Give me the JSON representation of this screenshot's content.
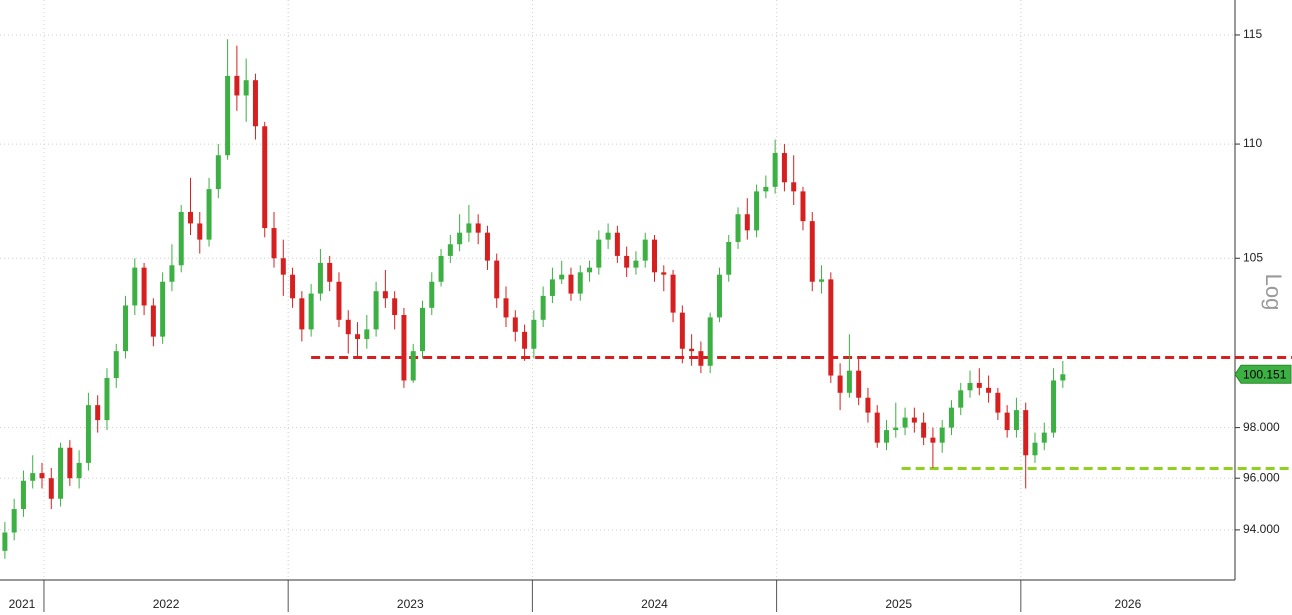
{
  "chart_data": {
    "type": "candlestick",
    "axis_label": "Log",
    "log_scale": true,
    "grid": true,
    "up_color": "#3cb043",
    "down_color": "#d62020",
    "ylim": [
      92.1,
      116.65
    ],
    "yticks": [
      {
        "value": 94,
        "label": "94.000"
      },
      {
        "value": 96,
        "label": "96.000"
      },
      {
        "value": 98,
        "label": "98.000"
      },
      105,
      110,
      115
    ],
    "xlim": [
      2021.82,
      2026.877
    ],
    "xticks": [
      {
        "value": 2021,
        "label": "2021"
      },
      {
        "value": 2022,
        "label": "2022"
      },
      {
        "value": 2023,
        "label": "2023"
      },
      {
        "value": 2024,
        "label": "2024"
      },
      {
        "value": 2025,
        "label": "2025"
      },
      {
        "value": 2026,
        "label": "2026"
      }
    ],
    "levels": [
      {
        "value": 100.84,
        "from": 2023.094,
        "color": "#d62020"
      },
      {
        "value": 96.38,
        "from": 2025.512,
        "color": "#8fd11e"
      }
    ],
    "series": [
      {
        "x": [
          2021.84,
          2021.878,
          2021.916,
          2021.954,
          2021.992,
          2022.03,
          2022.068,
          2022.106,
          2022.144,
          2022.182,
          2022.22,
          2022.258,
          2022.296,
          2022.334,
          2022.372,
          2022.41,
          2022.448,
          2022.486,
          2022.524,
          2022.562,
          2022.6,
          2022.638,
          2022.676,
          2022.714,
          2022.752,
          2022.79,
          2022.828,
          2022.866,
          2022.904,
          2022.942,
          2022.98,
          2023.018,
          2023.056,
          2023.094,
          2023.132,
          2023.17,
          2023.208,
          2023.246,
          2023.284,
          2023.322,
          2023.36,
          2023.398,
          2023.436,
          2023.474,
          2023.512,
          2023.55,
          2023.588,
          2023.626,
          2023.664,
          2023.702,
          2023.74,
          2023.778,
          2023.816,
          2023.854,
          2023.892,
          2023.93,
          2023.968,
          2024.006,
          2024.044,
          2024.082,
          2024.12,
          2024.158,
          2024.196,
          2024.234,
          2024.272,
          2024.31,
          2024.348,
          2024.386,
          2024.424,
          2024.462,
          2024.5,
          2024.538,
          2024.576,
          2024.614,
          2024.652,
          2024.69,
          2024.728,
          2024.766,
          2024.804,
          2024.842,
          2024.88,
          2024.918,
          2024.956,
          2024.994,
          2025.032,
          2025.07,
          2025.108,
          2025.146,
          2025.184,
          2025.222,
          2025.26,
          2025.298,
          2025.336,
          2025.374,
          2025.412,
          2025.45,
          2025.488,
          2025.526,
          2025.564,
          2025.602,
          2025.64,
          2025.678,
          2025.716,
          2025.754,
          2025.792,
          2025.83,
          2025.868,
          2025.906,
          2025.944,
          2025.982,
          2026.02,
          2026.058,
          2026.096,
          2026.134,
          2026.172
        ],
        "ohlc": [
          [
            93.2,
            94.3,
            92.9,
            93.9
          ],
          [
            93.9,
            95.2,
            93.6,
            94.8
          ],
          [
            94.8,
            96.3,
            94.5,
            95.9
          ],
          [
            95.9,
            96.9,
            95.6,
            96.2
          ],
          [
            96.2,
            96.6,
            95.6,
            96.0
          ],
          [
            96.0,
            96.4,
            94.8,
            95.2
          ],
          [
            95.2,
            97.4,
            94.9,
            97.2
          ],
          [
            97.2,
            97.5,
            95.7,
            96.0
          ],
          [
            96.0,
            97.1,
            95.6,
            96.6
          ],
          [
            96.6,
            99.4,
            96.3,
            98.9
          ],
          [
            98.9,
            99.3,
            97.8,
            98.3
          ],
          [
            98.3,
            100.4,
            97.9,
            100.0
          ],
          [
            100.0,
            101.4,
            99.6,
            101.1
          ],
          [
            101.1,
            103.4,
            100.8,
            103.0
          ],
          [
            103.0,
            105.0,
            102.6,
            104.6
          ],
          [
            104.6,
            104.8,
            102.6,
            103.0
          ],
          [
            103.0,
            103.3,
            101.3,
            101.7
          ],
          [
            101.7,
            104.4,
            101.4,
            104.0
          ],
          [
            104.0,
            105.6,
            103.6,
            104.7
          ],
          [
            104.7,
            107.3,
            104.4,
            107.0
          ],
          [
            107.0,
            108.5,
            106.0,
            106.5
          ],
          [
            106.5,
            107.0,
            105.2,
            105.8
          ],
          [
            105.8,
            108.5,
            105.5,
            108.0
          ],
          [
            108.0,
            110.0,
            107.6,
            109.5
          ],
          [
            109.5,
            114.8,
            109.3,
            113.1
          ],
          [
            113.1,
            114.5,
            111.5,
            112.2
          ],
          [
            112.2,
            113.9,
            111.0,
            112.9
          ],
          [
            112.9,
            113.2,
            110.2,
            110.8
          ],
          [
            110.8,
            111.0,
            105.9,
            106.3
          ],
          [
            106.3,
            107.0,
            104.6,
            105.0
          ],
          [
            105.0,
            105.8,
            103.4,
            104.3
          ],
          [
            104.3,
            104.6,
            102.9,
            103.3
          ],
          [
            103.3,
            103.6,
            101.5,
            102.0
          ],
          [
            102.0,
            103.9,
            101.7,
            103.5
          ],
          [
            103.5,
            105.4,
            103.2,
            104.8
          ],
          [
            104.8,
            105.1,
            103.6,
            104.0
          ],
          [
            104.0,
            104.4,
            102.1,
            102.4
          ],
          [
            102.4,
            102.8,
            101.0,
            101.8
          ],
          [
            101.8,
            102.3,
            100.8,
            101.6
          ],
          [
            101.6,
            102.6,
            101.2,
            102.0
          ],
          [
            102.0,
            104.0,
            101.7,
            103.6
          ],
          [
            103.6,
            104.5,
            102.9,
            103.3
          ],
          [
            103.3,
            103.6,
            102.0,
            102.6
          ],
          [
            102.6,
            102.9,
            99.6,
            99.9
          ],
          [
            99.9,
            101.4,
            99.8,
            101.1
          ],
          [
            101.1,
            103.2,
            100.8,
            102.9
          ],
          [
            102.9,
            104.4,
            102.6,
            104.0
          ],
          [
            104.0,
            105.4,
            103.8,
            105.1
          ],
          [
            105.1,
            106.0,
            104.8,
            105.6
          ],
          [
            105.6,
            106.9,
            105.3,
            106.1
          ],
          [
            106.1,
            107.3,
            105.7,
            106.5
          ],
          [
            106.5,
            106.9,
            105.6,
            106.1
          ],
          [
            106.1,
            106.4,
            104.5,
            104.9
          ],
          [
            104.9,
            105.2,
            102.9,
            103.3
          ],
          [
            103.3,
            103.8,
            102.1,
            102.5
          ],
          [
            102.5,
            102.8,
            101.5,
            101.9
          ],
          [
            101.9,
            102.2,
            100.7,
            101.2
          ],
          [
            101.2,
            102.8,
            100.8,
            102.4
          ],
          [
            102.4,
            103.8,
            102.1,
            103.4
          ],
          [
            103.4,
            104.6,
            103.1,
            104.1
          ],
          [
            104.1,
            104.9,
            103.9,
            104.3
          ],
          [
            104.3,
            104.6,
            103.2,
            103.5
          ],
          [
            103.5,
            104.7,
            103.2,
            104.4
          ],
          [
            104.4,
            104.9,
            104.0,
            104.6
          ],
          [
            104.6,
            106.2,
            104.3,
            105.8
          ],
          [
            105.8,
            106.5,
            105.4,
            106.1
          ],
          [
            106.1,
            106.4,
            104.8,
            105.1
          ],
          [
            105.1,
            105.5,
            104.2,
            104.6
          ],
          [
            104.6,
            105.3,
            104.3,
            104.9
          ],
          [
            104.9,
            106.1,
            104.6,
            105.8
          ],
          [
            105.8,
            106.0,
            104.0,
            104.4
          ],
          [
            104.4,
            104.7,
            103.6,
            104.3
          ],
          [
            104.3,
            104.5,
            102.3,
            102.7
          ],
          [
            102.7,
            103.0,
            100.6,
            101.2
          ],
          [
            101.2,
            101.8,
            100.5,
            101.1
          ],
          [
            101.1,
            101.5,
            100.2,
            100.5
          ],
          [
            100.5,
            102.7,
            100.2,
            102.5
          ],
          [
            102.5,
            104.6,
            102.3,
            104.3
          ],
          [
            104.3,
            106.0,
            104.0,
            105.7
          ],
          [
            105.7,
            107.2,
            105.4,
            106.9
          ],
          [
            106.9,
            107.6,
            105.8,
            106.2
          ],
          [
            106.2,
            108.2,
            105.9,
            107.9
          ],
          [
            107.9,
            108.6,
            107.6,
            108.1
          ],
          [
            108.1,
            110.2,
            107.8,
            109.6
          ],
          [
            109.6,
            110.0,
            107.9,
            108.3
          ],
          [
            108.3,
            109.5,
            107.3,
            107.9
          ],
          [
            107.9,
            108.1,
            106.2,
            106.6
          ],
          [
            106.6,
            107.0,
            103.6,
            104.0
          ],
          [
            104.0,
            104.7,
            103.5,
            104.1
          ],
          [
            104.1,
            104.4,
            99.8,
            100.1
          ],
          [
            100.1,
            100.6,
            98.7,
            99.4
          ],
          [
            99.4,
            101.8,
            99.2,
            100.3
          ],
          [
            100.3,
            100.8,
            98.9,
            99.2
          ],
          [
            99.2,
            99.6,
            98.2,
            98.6
          ],
          [
            98.6,
            98.9,
            97.2,
            97.4
          ],
          [
            97.4,
            98.3,
            97.1,
            97.9
          ],
          [
            97.9,
            99.0,
            97.6,
            98.0
          ],
          [
            98.0,
            98.8,
            97.7,
            98.4
          ],
          [
            98.4,
            98.8,
            97.8,
            98.2
          ],
          [
            98.2,
            98.6,
            97.3,
            97.6
          ],
          [
            97.6,
            98.0,
            96.4,
            97.4
          ],
          [
            97.4,
            98.3,
            97.0,
            98.0
          ],
          [
            98.0,
            99.1,
            97.7,
            98.8
          ],
          [
            98.8,
            99.8,
            98.5,
            99.5
          ],
          [
            99.5,
            100.3,
            99.2,
            99.8
          ],
          [
            99.8,
            100.4,
            99.3,
            99.6
          ],
          [
            99.6,
            100.1,
            99.0,
            99.4
          ],
          [
            99.4,
            99.6,
            98.3,
            98.6
          ],
          [
            98.6,
            98.9,
            97.6,
            97.9
          ],
          [
            97.9,
            99.2,
            97.6,
            98.7
          ],
          [
            98.7,
            99.0,
            95.6,
            96.9
          ],
          [
            96.9,
            97.8,
            96.6,
            97.4
          ],
          [
            97.4,
            98.2,
            97.1,
            97.8
          ],
          [
            97.8,
            100.4,
            97.6,
            99.9
          ],
          [
            99.9,
            100.7,
            99.6,
            100.151
          ]
        ]
      }
    ]
  }
}
